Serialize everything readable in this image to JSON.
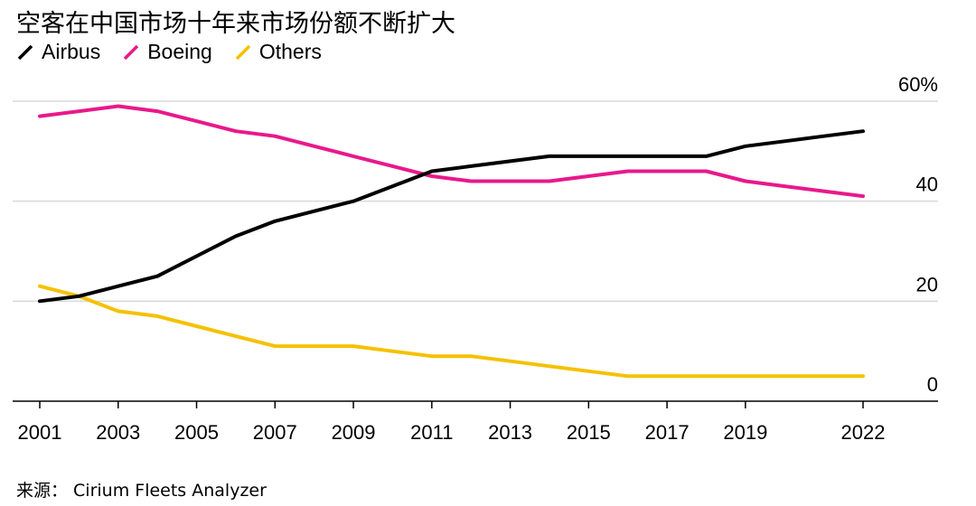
{
  "title": "空客在中国市场十年来市场份额不断扩大",
  "source": "来源：  Cirium Fleets Analyzer",
  "colors": {
    "Airbus": "#000000",
    "Boeing": "#e8198b",
    "Others": "#f5c100",
    "grid": "#d9d9d9"
  },
  "chart_data": {
    "type": "line",
    "title": "空客在中国市场十年来市场份额不断扩大",
    "x_tick_labels": [
      "2001",
      "2003",
      "2005",
      "2007",
      "2009",
      "2011",
      "2013",
      "2015",
      "2017",
      "2019",
      "2022"
    ],
    "y_tick_labels": [
      "60%",
      "40",
      "20",
      "0"
    ],
    "y_ticks": [
      60,
      40,
      20,
      0
    ],
    "ylim": [
      0,
      60
    ],
    "xlim": [
      2001,
      2022
    ],
    "grid": true,
    "legend": "top-left",
    "series": [
      {
        "name": "Airbus",
        "points": [
          [
            2001,
            20
          ],
          [
            2002,
            21
          ],
          [
            2003,
            23
          ],
          [
            2004,
            25
          ],
          [
            2005,
            29
          ],
          [
            2006,
            33
          ],
          [
            2007,
            36
          ],
          [
            2008,
            38
          ],
          [
            2009,
            40
          ],
          [
            2010,
            43
          ],
          [
            2011,
            46
          ],
          [
            2012,
            47
          ],
          [
            2013,
            48
          ],
          [
            2014,
            49
          ],
          [
            2015,
            49
          ],
          [
            2016,
            49
          ],
          [
            2017,
            49
          ],
          [
            2018,
            49
          ],
          [
            2019,
            51
          ],
          [
            2020,
            52
          ],
          [
            2021,
            53
          ],
          [
            2022,
            54
          ]
        ]
      },
      {
        "name": "Boeing",
        "points": [
          [
            2001,
            57
          ],
          [
            2002,
            58
          ],
          [
            2003,
            59
          ],
          [
            2004,
            58
          ],
          [
            2005,
            56
          ],
          [
            2006,
            54
          ],
          [
            2007,
            53
          ],
          [
            2008,
            51
          ],
          [
            2009,
            49
          ],
          [
            2010,
            47
          ],
          [
            2011,
            45
          ],
          [
            2012,
            44
          ],
          [
            2013,
            44
          ],
          [
            2014,
            44
          ],
          [
            2015,
            45
          ],
          [
            2016,
            46
          ],
          [
            2017,
            46
          ],
          [
            2018,
            46
          ],
          [
            2019,
            44
          ],
          [
            2020,
            43
          ],
          [
            2021,
            42
          ],
          [
            2022,
            41
          ]
        ]
      },
      {
        "name": "Others",
        "points": [
          [
            2001,
            23
          ],
          [
            2002,
            21
          ],
          [
            2003,
            18
          ],
          [
            2004,
            17
          ],
          [
            2005,
            15
          ],
          [
            2006,
            13
          ],
          [
            2007,
            11
          ],
          [
            2008,
            11
          ],
          [
            2009,
            11
          ],
          [
            2010,
            10
          ],
          [
            2011,
            9
          ],
          [
            2012,
            9
          ],
          [
            2013,
            8
          ],
          [
            2014,
            7
          ],
          [
            2015,
            6
          ],
          [
            2016,
            5
          ],
          [
            2017,
            5
          ],
          [
            2018,
            5
          ],
          [
            2019,
            5
          ],
          [
            2020,
            5
          ],
          [
            2021,
            5
          ],
          [
            2022,
            5
          ]
        ]
      }
    ]
  }
}
